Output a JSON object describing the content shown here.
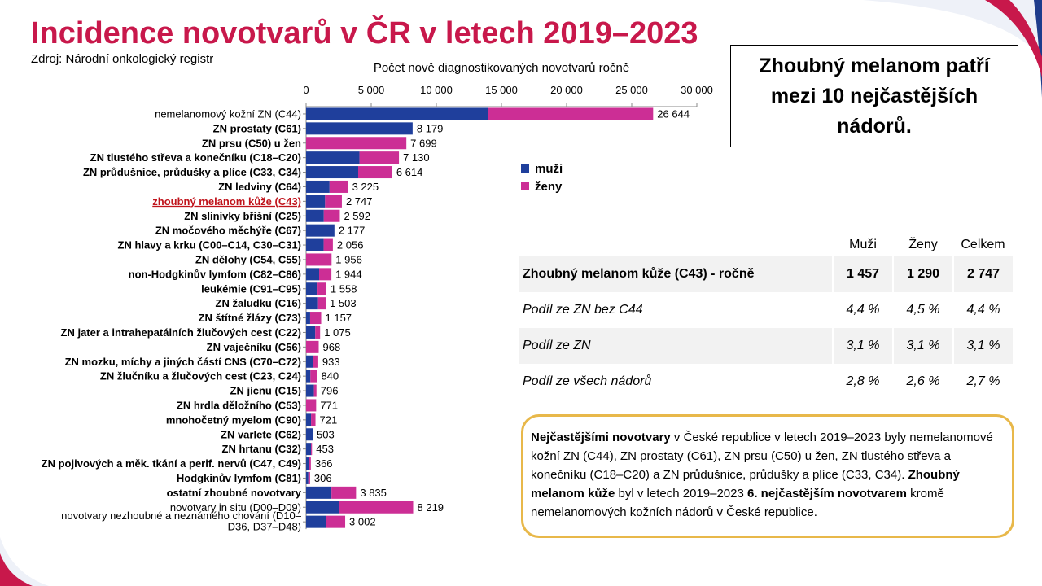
{
  "header": {
    "title": "Incidence novotvarů v ČR v letech 2019–2023",
    "source": "Zdroj: Národní onkologický registr"
  },
  "callout": {
    "line1": "Zhoubný melanom patří",
    "line2": "mezi 10 nejčastějších",
    "line3": "nádorů."
  },
  "chart_data": {
    "type": "bar",
    "orientation": "horizontal",
    "stacked": true,
    "title": "Počet nově diagnostikovaných novotvarů ročně",
    "xlim": [
      0,
      30000
    ],
    "x_ticks": [
      0,
      5000,
      10000,
      15000,
      20000,
      25000,
      30000
    ],
    "x_tick_labels": [
      "0",
      "5 000",
      "10 000",
      "15 000",
      "20 000",
      "25 000",
      "30 000"
    ],
    "grid": false,
    "legend_position": "right",
    "categories": [
      "nemelanomový kožní ZN (C44)",
      "ZN prostaty (C61)",
      "ZN prsu (C50) u žen",
      "ZN tlustého střeva a konečníku (C18–C20)",
      "ZN průdušnice, průdušky a plíce (C33, C34)",
      "ZN ledviny (C64)",
      "zhoubný melanom kůže (C43)",
      "ZN slinivky břišní (C25)",
      "ZN močového měchýře (C67)",
      "ZN hlavy a krku (C00–C14, C30–C31)",
      "ZN dělohy (C54, C55)",
      "non-Hodgkinův lymfom (C82–C86)",
      "leukémie (C91–C95)",
      "ZN žaludku (C16)",
      "ZN štítné žlázy (C73)",
      "ZN jater a intrahepatálních žlučových cest (C22)",
      "ZN vaječníku (C56)",
      "ZN mozku, míchy a jiných částí CNS (C70–C72)",
      "ZN žlučníku a žlučových cest (C23, C24)",
      "ZN jícnu (C15)",
      "ZN hrdla děložního (C53)",
      "mnohočetný myelom (C90)",
      "ZN varlete (C62)",
      "ZN hrtanu (C32)",
      "ZN pojivových a měk. tkání a perif. nervů (C47, C49)",
      "Hodgkinův lymfom (C81)",
      "ostatní zhoubné novotvary",
      "novotvary in situ (D00–D09)",
      "novotvary nezhoubné a neznámého chování (D10–D36, D37–D48)"
    ],
    "category_lines": [
      [
        "nemelanomový kožní ZN (C44)"
      ],
      [
        "ZN prostaty (C61)"
      ],
      [
        "ZN prsu (C50) u žen"
      ],
      [
        "ZN tlustého střeva a konečníku (C18–C20)"
      ],
      [
        "ZN průdušnice, průdušky a plíce (C33, C34)"
      ],
      [
        "ZN ledviny (C64)"
      ],
      [
        "zhoubný melanom kůže (C43)"
      ],
      [
        "ZN slinivky břišní (C25)"
      ],
      [
        "ZN močového měchýře (C67)"
      ],
      [
        "ZN hlavy a krku (C00–C14, C30–C31)"
      ],
      [
        "ZN dělohy (C54, C55)"
      ],
      [
        "non-Hodgkinův lymfom (C82–C86)"
      ],
      [
        "leukémie (C91–C95)"
      ],
      [
        "ZN žaludku (C16)"
      ],
      [
        "ZN štítné žlázy (C73)"
      ],
      [
        "ZN jater a intrahepatálních žlučových cest (C22)"
      ],
      [
        "ZN vaječníku (C56)"
      ],
      [
        "ZN mozku, míchy a jiných částí CNS (C70–C72)"
      ],
      [
        "ZN žlučníku a žlučových cest (C23, C24)"
      ],
      [
        "ZN jícnu (C15)"
      ],
      [
        "ZN hrdla děložního (C53)"
      ],
      [
        "mnohočetný myelom (C90)"
      ],
      [
        "ZN varlete (C62)"
      ],
      [
        "ZN hrtanu (C32)"
      ],
      [
        "ZN pojivových a měk. tkání a perif. nervů (C47, C49)"
      ],
      [
        "Hodgkinův lymfom (C81)"
      ],
      [
        "ostatní zhoubné novotvary"
      ],
      [
        "novotvary in situ (D00–D09)"
      ],
      [
        "novotvary nezhoubné a neznámého chování (D10–",
        "D36, D37–D48)"
      ]
    ],
    "label_style": [
      "normal",
      "bold",
      "bold",
      "bold",
      "bold",
      "bold",
      "highlight",
      "bold",
      "bold",
      "bold",
      "bold",
      "bold",
      "bold",
      "bold",
      "bold",
      "bold",
      "bold",
      "bold",
      "bold",
      "bold",
      "bold",
      "bold",
      "bold",
      "bold",
      "bold",
      "bold",
      "bold",
      "normal",
      "normal"
    ],
    "series": [
      {
        "name": "muži",
        "color": "#1f3f9c",
        "values": [
          13950,
          8179,
          0,
          4100,
          4000,
          1800,
          1457,
          1360,
          2177,
          1350,
          0,
          1000,
          880,
          920,
          310,
          700,
          0,
          560,
          330,
          600,
          0,
          380,
          503,
          380,
          200,
          170,
          1950,
          2500,
          1500
        ]
      },
      {
        "name": "ženy",
        "color": "#cc2e95",
        "values": [
          12694,
          0,
          7699,
          3030,
          2614,
          1425,
          1290,
          1232,
          0,
          706,
          1956,
          944,
          678,
          583,
          847,
          375,
          968,
          373,
          510,
          196,
          771,
          341,
          0,
          73,
          166,
          136,
          1885,
          5719,
          1502
        ]
      }
    ],
    "totals": [
      26644,
      8179,
      7699,
      7130,
      6614,
      3225,
      2747,
      2592,
      2177,
      2056,
      1956,
      1944,
      1558,
      1503,
      1157,
      1075,
      968,
      933,
      840,
      796,
      771,
      721,
      503,
      453,
      366,
      306,
      3835,
      8219,
      3002
    ],
    "total_labels": [
      "26 644",
      "8 179",
      "7 699",
      "7 130",
      "6 614",
      "3 225",
      "2 747",
      "2 592",
      "2 177",
      "2 056",
      "1 956",
      "1 944",
      "1 558",
      "1 503",
      "1 157",
      "1 075",
      "968",
      "933",
      "840",
      "796",
      "771",
      "721",
      "503",
      "453",
      "366",
      "306",
      "3 835",
      "8 219",
      "3 002"
    ]
  },
  "legend": {
    "items": [
      {
        "label": "muži",
        "color": "#1f3f9c"
      },
      {
        "label": "ženy",
        "color": "#cc2e95"
      }
    ]
  },
  "table": {
    "headers": [
      "",
      "Muži",
      "Ženy",
      "Celkem"
    ],
    "rows": [
      {
        "label": "Zhoubný melanom kůže (C43) - ročně",
        "muzi": "1 457",
        "zeny": "1 290",
        "celkem": "2 747"
      },
      {
        "label": "Podíl ze ZN bez C44",
        "muzi": "4,4 %",
        "zeny": "4,5 %",
        "celkem": "4,4 %"
      },
      {
        "label": "Podíl ze ZN",
        "muzi": "3,1 %",
        "zeny": "3,1 %",
        "celkem": "3,1 %"
      },
      {
        "label": "Podíl ze všech nádorů",
        "muzi": "2,8 %",
        "zeny": "2,6 %",
        "celkem": "2,7 %"
      }
    ]
  },
  "note": {
    "p1_bold": "Nejčastějšími novotvary",
    "p1": " v České republice v letech 2019–2023 byly nemelanomové kožní ZN (C44), ZN prostaty (C61), ZN prsu (C50) u žen, ZN tlustého střeva a konečníku (C18–C20) a ZN průdušnice, průdušky a plíce (C33, C34). ",
    "p2_bold": "Zhoubný melanom kůže",
    "p2": " byl v letech 2019–2023 ",
    "p3_bold": "6. nejčastějším novotvarem",
    "p3": " kromě nemelanomových kožních nádorů v České republice."
  },
  "colors": {
    "title": "#c8184b",
    "men": "#1f3f9c",
    "women": "#cc2e95",
    "highlight_label": "#c0141c",
    "note_border": "#e8b84a",
    "deco_navy": "#1e3c8c",
    "deco_red": "#c8184b"
  }
}
